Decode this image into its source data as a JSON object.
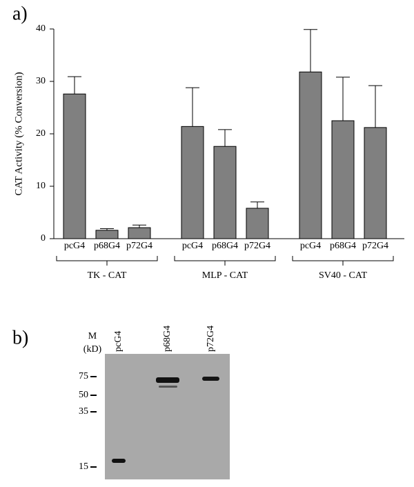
{
  "chart_data": {
    "type": "bar",
    "panel_label": "a)",
    "y_label": "CAT Activity (% Conversion)",
    "ylim": [
      0,
      40
    ],
    "yticks": [
      0,
      10,
      20,
      30,
      40
    ],
    "color": "#808080",
    "groups": [
      {
        "name": "TK - CAT",
        "categories": [
          "pcG4",
          "p68G4",
          "p72G4"
        ],
        "values": [
          27.6,
          1.6,
          2.1
        ],
        "errors": [
          3.3,
          0.3,
          0.5
        ]
      },
      {
        "name": "MLP - CAT",
        "categories": [
          "pcG4",
          "p68G4",
          "p72G4"
        ],
        "values": [
          21.4,
          17.6,
          5.8
        ],
        "errors": [
          7.4,
          3.2,
          1.2
        ]
      },
      {
        "name": "SV40 - CAT",
        "categories": [
          "pcG4",
          "p68G4",
          "p72G4"
        ],
        "values": [
          31.8,
          22.5,
          21.2
        ],
        "errors": [
          8.1,
          8.3,
          8.0
        ]
      }
    ]
  },
  "blot": {
    "panel_label": "b)",
    "unit_label": [
      "M",
      "(kD)"
    ],
    "lanes": [
      "pcG4",
      "p68G4",
      "p72G4"
    ],
    "markers": [
      "75",
      "50",
      "35",
      "15"
    ]
  }
}
